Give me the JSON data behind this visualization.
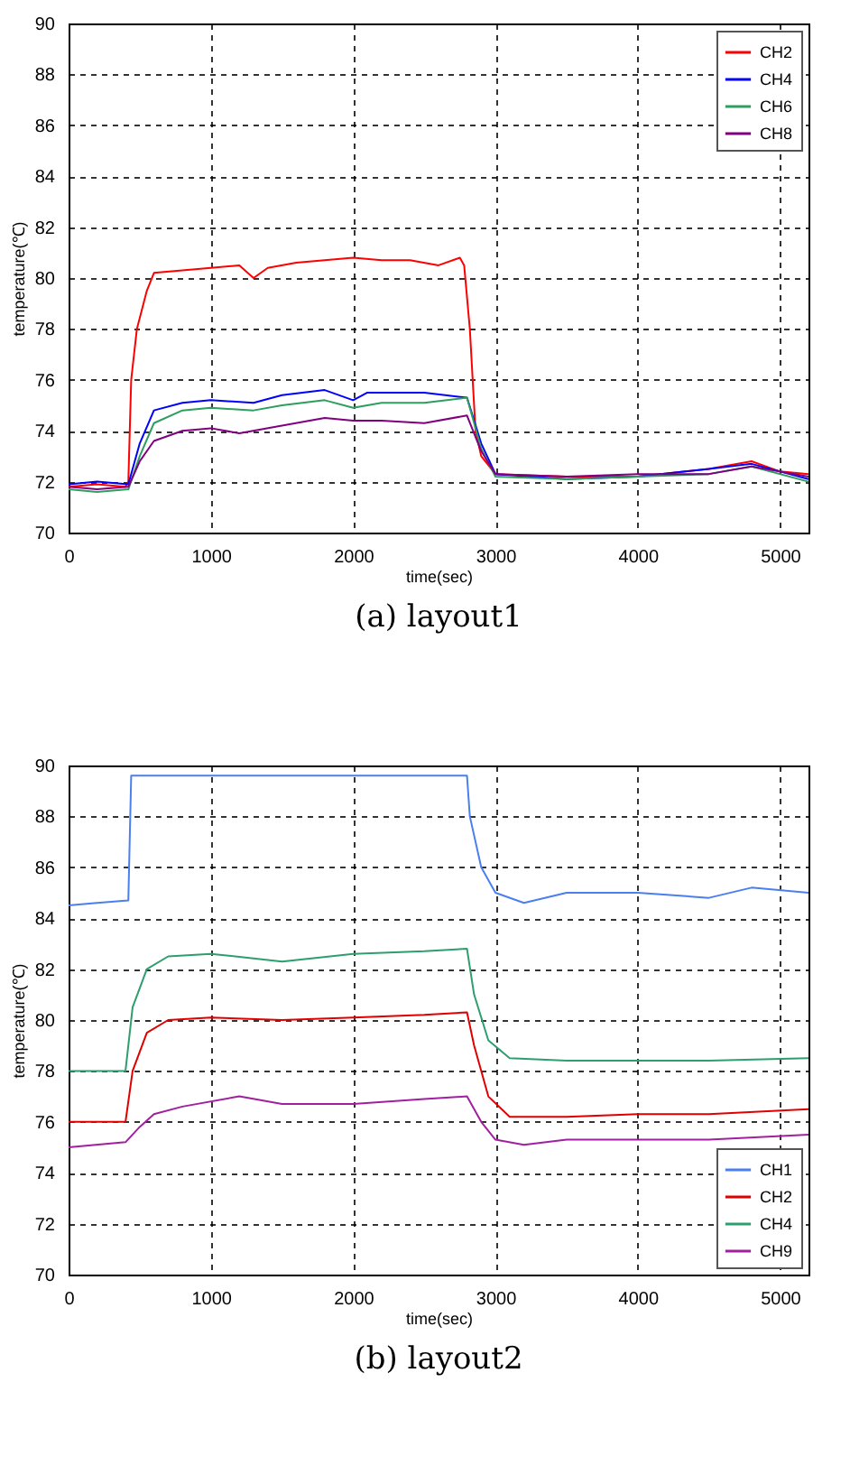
{
  "chart_data": [
    {
      "type": "line",
      "xlabel": "time(sec)",
      "ylabel": "temperature(℃)",
      "annotations": [
        "(a) layout1"
      ],
      "xlim": [
        0,
        5200
      ],
      "xticks": [
        0,
        1000,
        2000,
        3000,
        4000,
        5000
      ],
      "ylim": [
        70,
        90
      ],
      "yticks": [
        70,
        72,
        74,
        76,
        78,
        80,
        82,
        84,
        86,
        88,
        90
      ],
      "grid": true,
      "legend": "top right",
      "line_style": "solid",
      "series": [
        {
          "name": "CH2",
          "color": "#ff0000",
          "x": [
            0,
            200,
            400,
            420,
            440,
            480,
            550,
            600,
            800,
            1000,
            1200,
            1300,
            1400,
            1600,
            1800,
            2000,
            2200,
            2400,
            2600,
            2750,
            2780,
            2820,
            2860,
            2900,
            3000,
            3500,
            4000,
            4500,
            4800,
            5000,
            5200
          ],
          "values": [
            71.8,
            71.9,
            71.8,
            72,
            76,
            78,
            79.5,
            80.2,
            80.3,
            80.4,
            80.5,
            80,
            80.4,
            80.6,
            80.7,
            80.8,
            80.7,
            80.7,
            80.5,
            80.8,
            80.5,
            78,
            74,
            73,
            72.3,
            72.2,
            72.2,
            72.5,
            72.8,
            72.4,
            72.3
          ]
        },
        {
          "name": "CH4",
          "color": "#0000ff",
          "x": [
            0,
            200,
            420,
            500,
            600,
            800,
            1000,
            1300,
            1500,
            1800,
            2000,
            2100,
            2500,
            2800,
            2900,
            3000,
            3500,
            4000,
            4500,
            4800,
            5200
          ],
          "values": [
            71.9,
            72,
            71.9,
            73.5,
            74.8,
            75.1,
            75.2,
            75.1,
            75.4,
            75.6,
            75.2,
            75.5,
            75.5,
            75.3,
            73.5,
            72.3,
            72.1,
            72.2,
            72.5,
            72.7,
            72.1
          ]
        },
        {
          "name": "CH6",
          "color": "#2e9e5e",
          "x": [
            0,
            200,
            420,
            500,
            600,
            800,
            1000,
            1300,
            1500,
            1800,
            2000,
            2200,
            2500,
            2800,
            2900,
            3000,
            3500,
            4000,
            4500,
            4800,
            5200
          ],
          "values": [
            71.7,
            71.6,
            71.7,
            73,
            74.3,
            74.8,
            74.9,
            74.8,
            75,
            75.2,
            74.9,
            75.1,
            75.1,
            75.3,
            73.3,
            72.2,
            72.1,
            72.2,
            72.3,
            72.6,
            72
          ]
        },
        {
          "name": "CH8",
          "color": "#800080",
          "x": [
            0,
            200,
            420,
            500,
            600,
            800,
            1000,
            1200,
            1500,
            1800,
            2000,
            2200,
            2500,
            2800,
            2900,
            3000,
            3500,
            4000,
            4500,
            4800,
            5200
          ],
          "values": [
            71.8,
            71.7,
            71.8,
            72.8,
            73.6,
            74,
            74.1,
            73.9,
            74.2,
            74.5,
            74.4,
            74.4,
            74.3,
            74.6,
            73.2,
            72.3,
            72.2,
            72.3,
            72.3,
            72.6,
            72.2
          ]
        }
      ]
    },
    {
      "type": "line",
      "xlabel": "time(sec)",
      "ylabel": "temperature(℃)",
      "annotations": [
        "(b) layout2"
      ],
      "xlim": [
        0,
        5200
      ],
      "xticks": [
        0,
        1000,
        2000,
        3000,
        4000,
        5000
      ],
      "ylim": [
        70,
        90
      ],
      "yticks": [
        70,
        72,
        74,
        76,
        78,
        80,
        82,
        84,
        86,
        88,
        90
      ],
      "grid": true,
      "legend": "bottom right",
      "line_style": "solid",
      "series": [
        {
          "name": "CH1",
          "color": "#4a7ff0",
          "x": [
            0,
            200,
            420,
            440,
            1000,
            2000,
            2800,
            2820,
            2900,
            3000,
            3200,
            3500,
            4000,
            4500,
            4800,
            5200
          ],
          "values": [
            84.5,
            84.6,
            84.7,
            89.6,
            89.6,
            89.6,
            89.6,
            88,
            86,
            85,
            84.6,
            85,
            85,
            84.8,
            85.2,
            85
          ]
        },
        {
          "name": "CH2",
          "color": "#e00000",
          "x": [
            0,
            400,
            450,
            550,
            700,
            1000,
            1500,
            2000,
            2500,
            2800,
            2850,
            2950,
            3100,
            3500,
            4000,
            4500,
            5200
          ],
          "values": [
            76,
            76,
            78,
            79.5,
            80,
            80.1,
            80,
            80.1,
            80.2,
            80.3,
            79,
            77,
            76.2,
            76.2,
            76.3,
            76.3,
            76.5
          ]
        },
        {
          "name": "CH4",
          "color": "#2e9e6e",
          "x": [
            0,
            400,
            450,
            550,
            700,
            1000,
            1500,
            2000,
            2500,
            2800,
            2850,
            2950,
            3100,
            3500,
            4000,
            4500,
            5200
          ],
          "values": [
            78,
            78,
            80.5,
            82,
            82.5,
            82.6,
            82.3,
            82.6,
            82.7,
            82.8,
            81,
            79.2,
            78.5,
            78.4,
            78.4,
            78.4,
            78.5
          ]
        },
        {
          "name": "CH9",
          "color": "#a020a0",
          "x": [
            0,
            400,
            500,
            600,
            800,
            1200,
            1500,
            2000,
            2500,
            2800,
            2900,
            3000,
            3200,
            3500,
            4000,
            4500,
            5200
          ],
          "values": [
            75,
            75.2,
            75.8,
            76.3,
            76.6,
            77,
            76.7,
            76.7,
            76.9,
            77,
            76,
            75.3,
            75.1,
            75.3,
            75.3,
            75.3,
            75.5
          ]
        }
      ]
    }
  ]
}
